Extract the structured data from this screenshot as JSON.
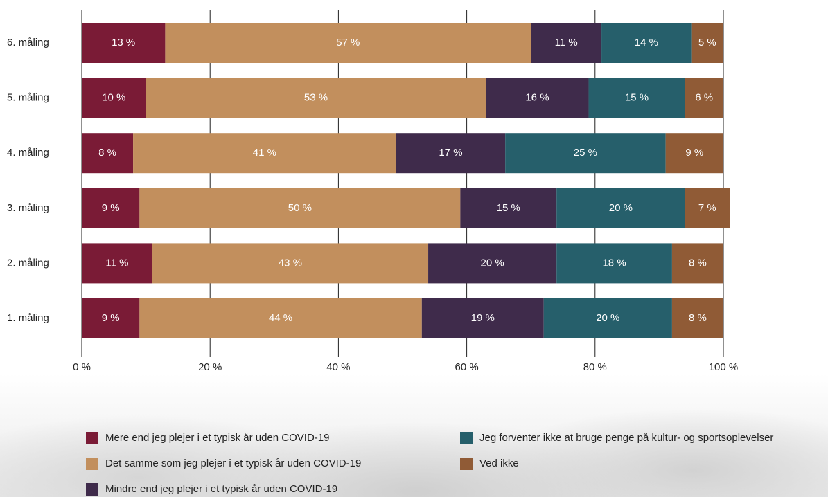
{
  "chart_data": {
    "type": "stacked-bar-horizontal",
    "categories": [
      "6. måling",
      "5. måling",
      "4. måling",
      "3. måling",
      "2. måling",
      "1. måling"
    ],
    "series": [
      {
        "name": "Mere end jeg plejer i et typisk år uden COVID-19",
        "color": "#7a1b36",
        "values": [
          13,
          10,
          8,
          9,
          11,
          9
        ],
        "value_labels": [
          "13 %",
          "10 %",
          "8 %",
          "9 %",
          "11 %",
          "9 %"
        ]
      },
      {
        "name": "Det samme som jeg plejer i et typisk år uden COVID-19",
        "color": "#c28f5d",
        "values": [
          57,
          53,
          41,
          50,
          43,
          44
        ],
        "value_labels": [
          "57 %",
          "53 %",
          "41 %",
          "50 %",
          "43 %",
          "44 %"
        ]
      },
      {
        "name": "Mindre end jeg plejer i et typisk år uden COVID-19",
        "color": "#3f2b4b",
        "values": [
          11,
          16,
          17,
          15,
          20,
          19
        ],
        "value_labels": [
          "11 %",
          "16 %",
          "17 %",
          "15 %",
          "20 %",
          "19 %"
        ]
      },
      {
        "name": "Jeg forventer ikke at bruge penge på kultur- og sportsoplevelser",
        "color": "#265f6b",
        "values": [
          14,
          15,
          25,
          20,
          18,
          20
        ],
        "value_labels": [
          "14 %",
          "15 %",
          "25 %",
          "20 %",
          "18 %",
          "20 %"
        ]
      },
      {
        "name": "Ved ikke",
        "color": "#905b36",
        "values": [
          5,
          6,
          9,
          7,
          8,
          8
        ],
        "value_labels": [
          "5 %",
          "6 %",
          "9 %",
          "7 %",
          "8 %",
          "8 %"
        ]
      }
    ],
    "xlim": [
      0,
      100
    ],
    "xticks": [
      {
        "value": 0,
        "label": "0 %"
      },
      {
        "value": 20,
        "label": "20 %"
      },
      {
        "value": 40,
        "label": "40 %"
      },
      {
        "value": 60,
        "label": "60 %"
      },
      {
        "value": 80,
        "label": "80 %"
      },
      {
        "value": 100,
        "label": "100 %"
      }
    ],
    "grid": true
  }
}
